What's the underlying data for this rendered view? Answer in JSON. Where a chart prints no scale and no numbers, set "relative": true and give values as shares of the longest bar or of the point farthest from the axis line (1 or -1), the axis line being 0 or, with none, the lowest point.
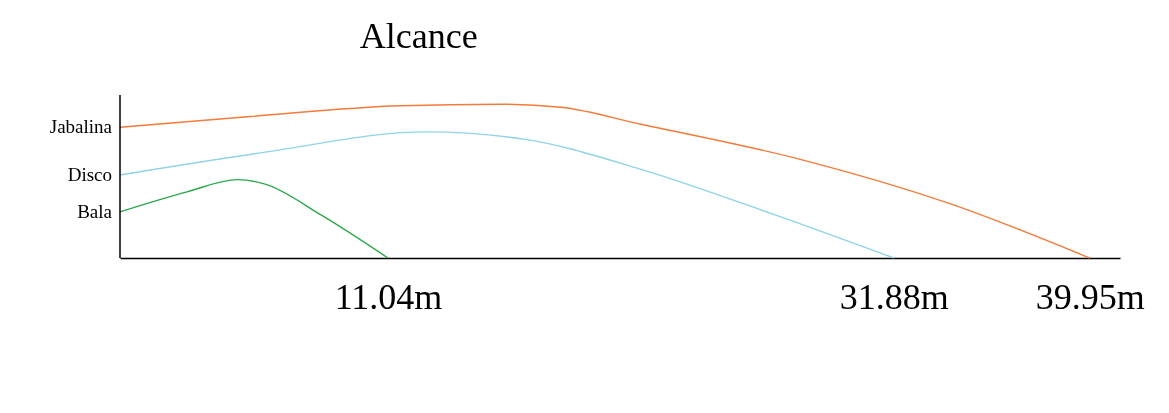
{
  "chart_data": {
    "type": "line",
    "title": "Alcance",
    "relative": true,
    "xlim": [
      0,
      41.2
    ],
    "xticks": [
      {
        "value": 11.04,
        "label": "11.04m"
      },
      {
        "value": 31.88,
        "label": "31.88m"
      },
      {
        "value": 39.95,
        "label": "39.95m"
      }
    ],
    "grid": false,
    "legend": false,
    "marker": "none",
    "line_style": "solid",
    "series": [
      {
        "name": "Jabalina",
        "color": "#f47a3a",
        "x": [
          0,
          5.37,
          11.56,
          15.69,
          18.16,
          21.46,
          28.06,
          34.25,
          39.95
        ],
        "values": [
          0.85,
          0.92,
          0.99,
          1.0,
          0.98,
          0.87,
          0.64,
          0.35,
          0
        ]
      },
      {
        "name": "Disco",
        "color": "#8fd3e6",
        "x": [
          0,
          6.05,
          12.56,
          16.75,
          21.4,
          26.99,
          31.88
        ],
        "values": [
          0.54,
          0.69,
          0.82,
          0.77,
          0.58,
          0.28,
          0
        ]
      },
      {
        "name": "Bala",
        "color": "#2ca84a",
        "x": [
          0,
          2.76,
          4.83,
          5.98,
          8.28,
          11.04
        ],
        "values": [
          0.3,
          0.43,
          0.51,
          0.48,
          0.28,
          0
        ]
      }
    ]
  }
}
